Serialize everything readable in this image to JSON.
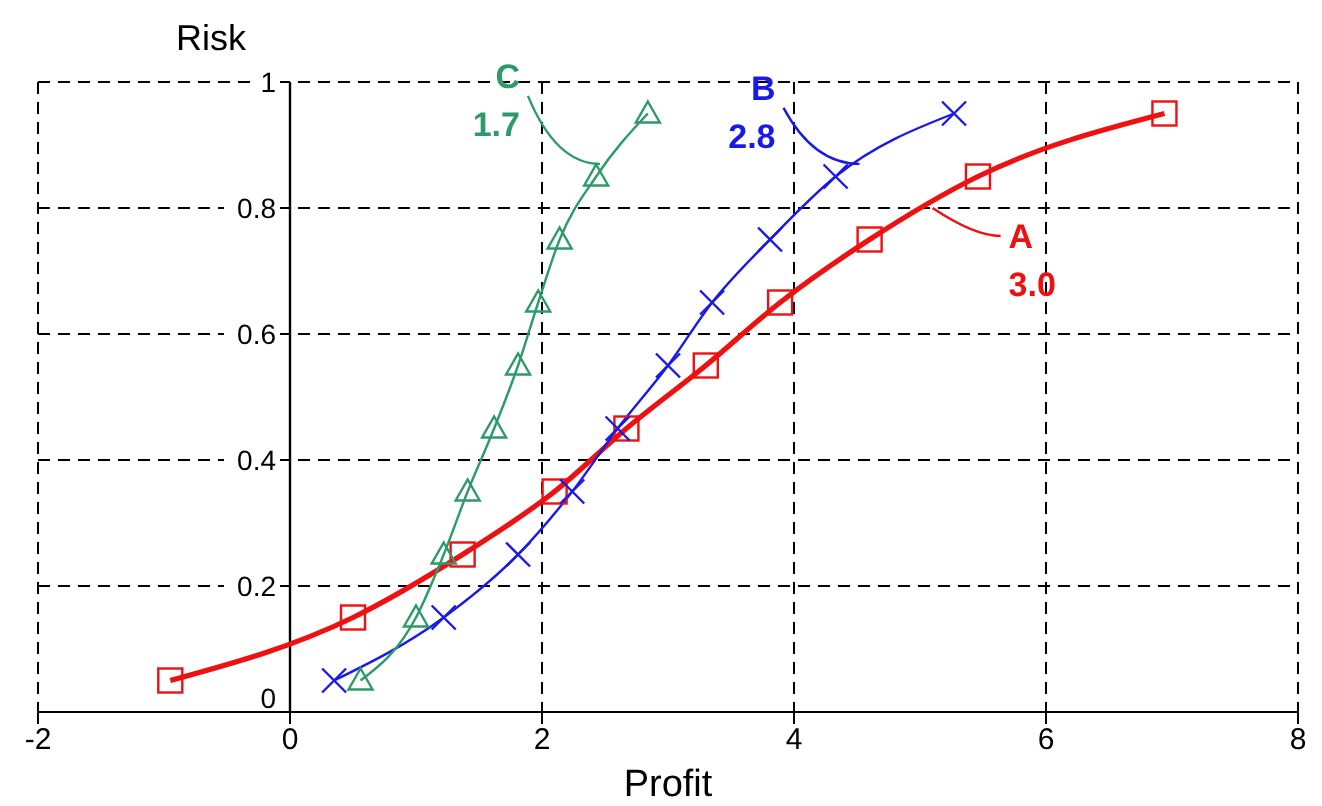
{
  "chart_data": {
    "type": "line",
    "xlabel": "Profit",
    "ylabel": "Risk",
    "xlim": [
      -2,
      8
    ],
    "xticks": [
      -2,
      0,
      2,
      4,
      6,
      8
    ],
    "ylim": [
      0,
      1
    ],
    "yticks": [
      0,
      0.2,
      0.4,
      0.6,
      0.8,
      1
    ],
    "grid": true,
    "line_style": "solid",
    "series": [
      {
        "name": "A",
        "color": "#ee1111",
        "marker": "square",
        "x": [
          -0.95,
          0.5,
          1.37,
          2.1,
          2.67,
          3.3,
          3.89,
          4.6,
          5.46,
          6.94
        ],
        "values": [
          0.05,
          0.15,
          0.25,
          0.35,
          0.45,
          0.55,
          0.65,
          0.75,
          0.85,
          0.95
        ]
      },
      {
        "name": "B",
        "color": "#1a1ae6",
        "marker": "cross",
        "x": [
          0.35,
          1.22,
          1.81,
          2.24,
          2.6,
          3.0,
          3.35,
          3.81,
          4.33,
          5.27
        ],
        "values": [
          0.05,
          0.15,
          0.25,
          0.35,
          0.45,
          0.55,
          0.65,
          0.75,
          0.85,
          0.95
        ]
      },
      {
        "name": "C",
        "color": "#2e9a6a",
        "marker": "triangle",
        "x": [
          0.56,
          1.0,
          1.22,
          1.41,
          1.62,
          1.81,
          1.97,
          2.14,
          2.43,
          2.84
        ],
        "values": [
          0.05,
          0.15,
          0.25,
          0.35,
          0.45,
          0.55,
          0.65,
          0.75,
          0.85,
          0.95
        ]
      }
    ],
    "annotations": [
      {
        "text": "3.0",
        "x": 5.1,
        "y": 0.8
      },
      {
        "text": "2.8",
        "x": 4.52,
        "y": 0.87
      },
      {
        "text": "1.7",
        "x": 2.46,
        "y": 0.87
      }
    ]
  }
}
